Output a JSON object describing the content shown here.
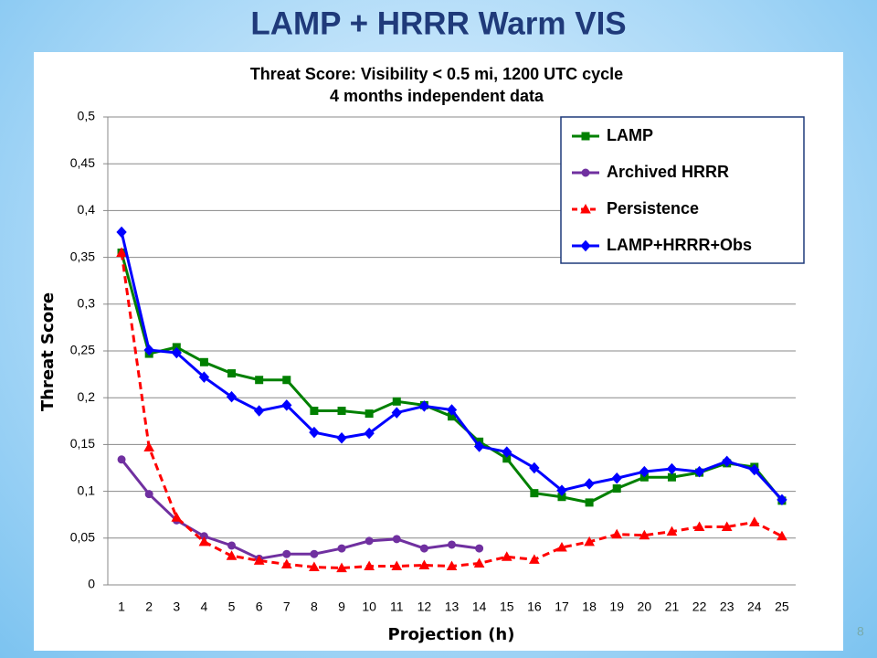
{
  "slide_title": "LAMP + HRRR Warm VIS",
  "slide_number": "8",
  "chart_data": {
    "type": "line",
    "title": "Threat Score: Visibility < 0.5 mi, 1200 UTC cycle",
    "subtitle": "4 months independent data",
    "x_label": "Projection (h)",
    "y_label": "Threat Score",
    "categories": [
      "1",
      "2",
      "3",
      "4",
      "5",
      "6",
      "7",
      "8",
      "9",
      "10",
      "11",
      "12",
      "13",
      "14",
      "15",
      "16",
      "17",
      "18",
      "19",
      "20",
      "21",
      "22",
      "23",
      "24",
      "25"
    ],
    "ylim": [
      0,
      0.5
    ],
    "yticks": [
      0,
      {
        "value": 0.05,
        "label": "0,05"
      },
      {
        "value": 0.1,
        "label": "0,1"
      },
      {
        "value": 0.15,
        "label": "0,15"
      },
      {
        "value": 0.2,
        "label": "0,2"
      },
      {
        "value": 0.25,
        "label": "0,25"
      },
      {
        "value": 0.3,
        "label": "0,3"
      },
      {
        "value": 0.35,
        "label": "0,35"
      },
      {
        "value": 0.4,
        "label": "0,4"
      },
      {
        "value": 0.45,
        "label": "0,45"
      },
      {
        "value": 0.5,
        "label": "0,5"
      }
    ],
    "grid": true,
    "legend": "top-right",
    "series": [
      {
        "name": "LAMP",
        "color": "#008000",
        "marker": "square",
        "dashed": false,
        "values": [
          0.355,
          0.247,
          0.254,
          0.238,
          0.226,
          0.219,
          0.219,
          0.186,
          0.186,
          0.183,
          0.196,
          0.192,
          0.18,
          0.153,
          0.135,
          0.098,
          0.094,
          0.088,
          0.103,
          0.115,
          0.115,
          0.12,
          0.13,
          0.126,
          0.09
        ]
      },
      {
        "name": "Archived HRRR",
        "color": "#7030a0",
        "marker": "circle",
        "dashed": false,
        "values": [
          0.134,
          0.097,
          0.069,
          0.052,
          0.042,
          0.028,
          0.033,
          0.033,
          0.039,
          0.047,
          0.049,
          0.039,
          0.043,
          0.039,
          null,
          null,
          null,
          null,
          null,
          null,
          null,
          null,
          null,
          null,
          null
        ]
      },
      {
        "name": "Persistence",
        "color": "#ff0000",
        "marker": "triangle",
        "dashed": true,
        "values": [
          0.355,
          0.147,
          0.072,
          0.046,
          0.031,
          0.026,
          0.022,
          0.019,
          0.018,
          0.02,
          0.02,
          0.021,
          0.02,
          0.023,
          0.03,
          0.027,
          0.04,
          0.046,
          0.054,
          0.053,
          0.057,
          0.062,
          0.062,
          0.067,
          0.052
        ]
      },
      {
        "name": "LAMP+HRRR+Obs",
        "color": "#0000ff",
        "marker": "diamond",
        "dashed": false,
        "values": [
          0.377,
          0.251,
          0.248,
          0.222,
          0.201,
          0.186,
          0.192,
          0.163,
          0.157,
          0.162,
          0.184,
          0.191,
          0.187,
          0.148,
          0.142,
          0.125,
          0.101,
          0.108,
          0.114,
          0.121,
          0.124,
          0.121,
          0.132,
          0.123,
          0.091
        ]
      }
    ]
  }
}
